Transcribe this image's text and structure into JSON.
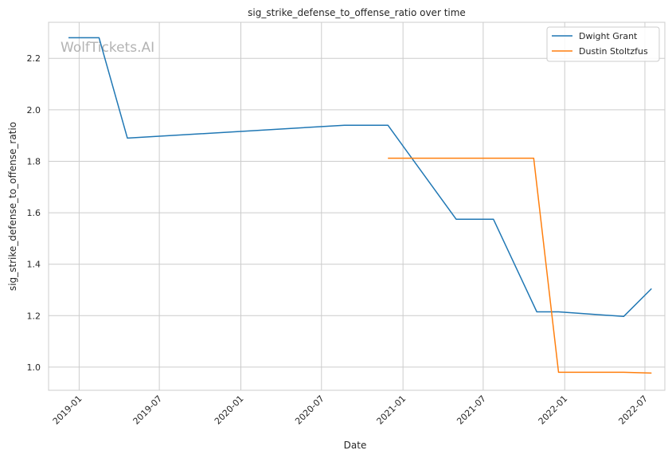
{
  "chart_data": {
    "type": "line",
    "title": "sig_strike_defense_to_offense_ratio over time",
    "xlabel": "Date",
    "ylabel": "sig_strike_defense_to_offense_ratio",
    "watermark": "WolfTickets.AI",
    "xlim": [
      "2018-10-24",
      "2022-08-15"
    ],
    "ylim": [
      0.91,
      2.34
    ],
    "x_ticks": [
      "2019-01",
      "2019-07",
      "2020-01",
      "2020-07",
      "2021-01",
      "2021-07",
      "2022-01",
      "2022-07"
    ],
    "y_ticks": [
      "1.0",
      "1.2",
      "1.4",
      "1.6",
      "1.8",
      "2.0",
      "2.2"
    ],
    "grid": true,
    "legend_position": "top-right",
    "series": [
      {
        "name": "Dwight Grant",
        "color": "#1f77b4",
        "points": [
          {
            "x": "2018-12-08",
            "y": 2.28
          },
          {
            "x": "2019-02-15",
            "y": 2.28
          },
          {
            "x": "2019-04-20",
            "y": 1.89
          },
          {
            "x": "2020-08-22",
            "y": 1.94
          },
          {
            "x": "2020-11-28",
            "y": 1.94
          },
          {
            "x": "2021-05-01",
            "y": 1.575
          },
          {
            "x": "2021-07-24",
            "y": 1.575
          },
          {
            "x": "2021-10-30",
            "y": 1.215
          },
          {
            "x": "2021-12-18",
            "y": 1.215
          },
          {
            "x": "2022-05-14",
            "y": 1.197
          },
          {
            "x": "2022-07-16",
            "y": 1.305
          }
        ]
      },
      {
        "name": "Dustin Stoltzfus",
        "color": "#ff7f0e",
        "points": [
          {
            "x": "2020-11-28",
            "y": 1.812
          },
          {
            "x": "2021-10-23",
            "y": 1.812
          },
          {
            "x": "2021-12-18",
            "y": 0.98
          },
          {
            "x": "2022-05-14",
            "y": 0.98
          },
          {
            "x": "2022-07-16",
            "y": 0.977
          }
        ]
      }
    ]
  }
}
